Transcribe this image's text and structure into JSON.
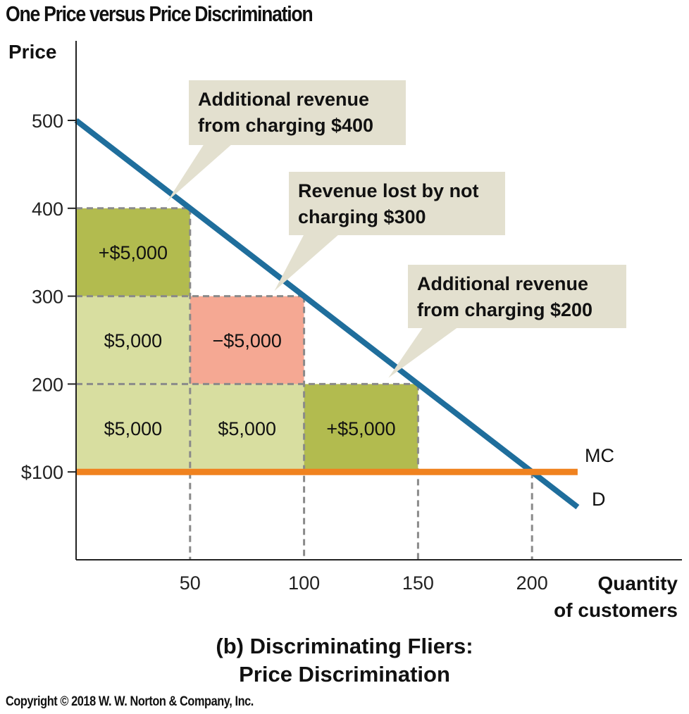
{
  "figure": {
    "title": "One Price versus Price Discrimination",
    "caption_line1": "(b) Discriminating Fliers:",
    "caption_line2": "Price Discrimination",
    "copyright": "Copyright © 2018 W. W. Norton & Company, Inc."
  },
  "chart_data": {
    "type": "area",
    "ylabel": "Price",
    "xlabel_line1": "Quantity",
    "xlabel_line2": "of customers",
    "xlim": [
      0,
      220
    ],
    "ylim": [
      0,
      600
    ],
    "x_ticks": [
      {
        "value": 50,
        "label": "50"
      },
      {
        "value": 100,
        "label": "100"
      },
      {
        "value": 150,
        "label": "150"
      },
      {
        "value": 200,
        "label": "200"
      }
    ],
    "y_ticks": [
      {
        "value": 100,
        "label": "$100"
      },
      {
        "value": 200,
        "label": "200"
      },
      {
        "value": 300,
        "label": "300"
      },
      {
        "value": 400,
        "label": "400"
      },
      {
        "value": 500,
        "label": "500"
      }
    ],
    "series": [
      {
        "name": "D",
        "color": "#1f6e9c",
        "points": [
          [
            0,
            500
          ],
          [
            220,
            60
          ]
        ]
      },
      {
        "name": "MC",
        "color": "#f0821f",
        "points": [
          [
            0,
            100
          ],
          [
            220,
            100
          ]
        ]
      }
    ],
    "rectangles": [
      {
        "x": [
          0,
          50
        ],
        "y": [
          300,
          400
        ],
        "label": "+$5,000",
        "color": "#b2bb4f"
      },
      {
        "x": [
          0,
          50
        ],
        "y": [
          200,
          300
        ],
        "label": "$5,000",
        "color": "#d8dea0"
      },
      {
        "x": [
          0,
          50
        ],
        "y": [
          100,
          200
        ],
        "label": "$5,000",
        "color": "#d8dea0"
      },
      {
        "x": [
          50,
          100
        ],
        "y": [
          200,
          300
        ],
        "label": "−$5,000",
        "color": "#f5a893"
      },
      {
        "x": [
          50,
          100
        ],
        "y": [
          100,
          200
        ],
        "label": "$5,000",
        "color": "#d8dea0"
      },
      {
        "x": [
          100,
          150
        ],
        "y": [
          100,
          200
        ],
        "label": "+$5,000",
        "color": "#b2bb4f"
      }
    ],
    "callouts": [
      {
        "lines": [
          "Additional revenue",
          "from charging $400"
        ],
        "points_to": [
          40,
          408
        ]
      },
      {
        "lines": [
          "Revenue lost by not",
          "charging $300"
        ],
        "points_to": [
          87,
          306
        ]
      },
      {
        "lines": [
          "Additional revenue",
          "from charging $200"
        ],
        "points_to": [
          137,
          207
        ]
      }
    ],
    "callout_color": "#e3e0cf",
    "grid": false
  }
}
